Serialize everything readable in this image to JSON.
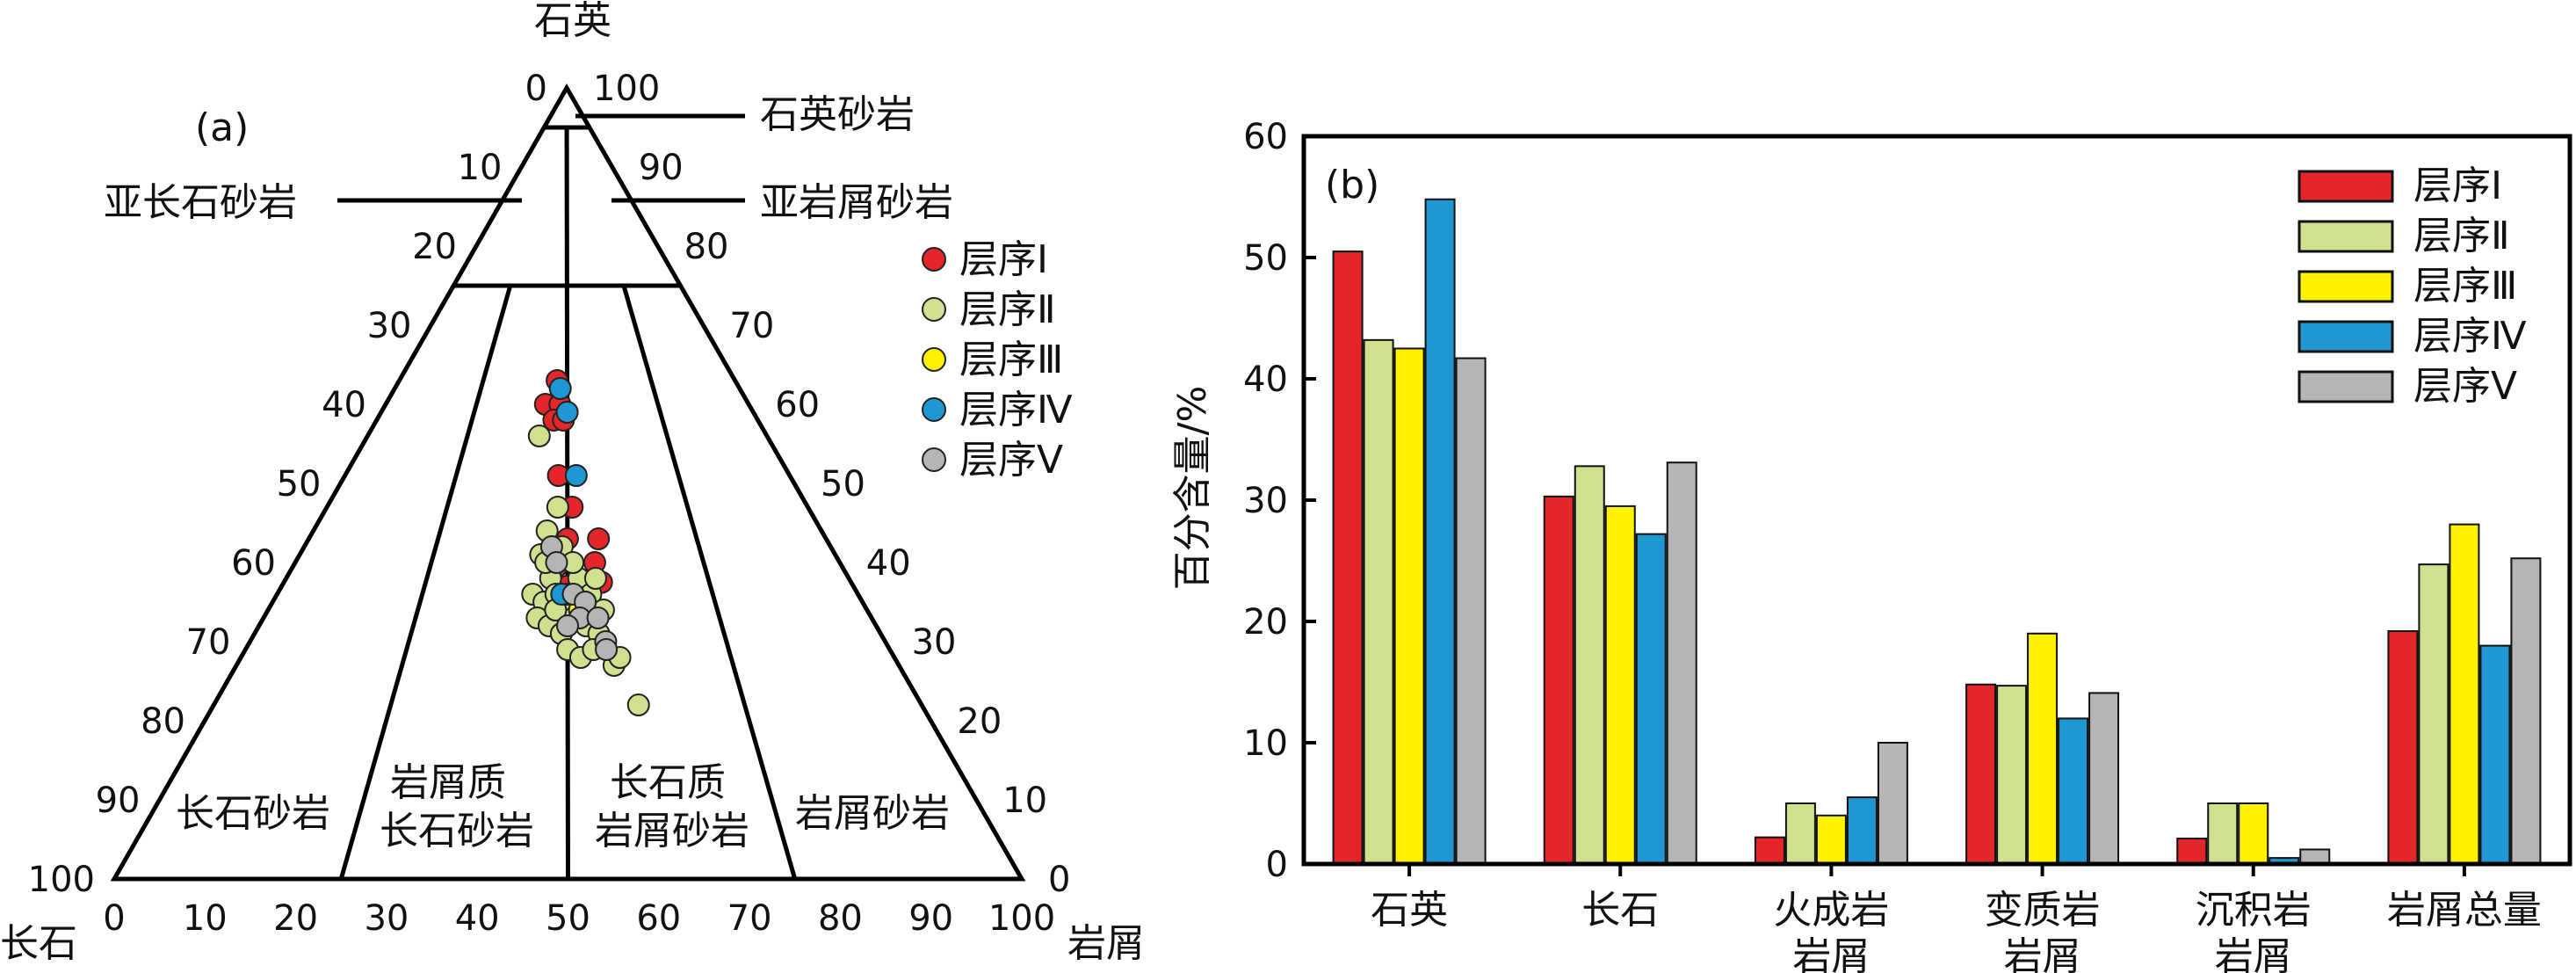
{
  "chart_data": [
    {
      "type": "scatter",
      "subtype": "ternary",
      "panel_label": "(a)",
      "axes": {
        "top": "石英",
        "left": "长石",
        "right": "岩屑"
      },
      "ticks": {
        "bottom": [
          "0",
          "10",
          "20",
          "30",
          "40",
          "50",
          "60",
          "70",
          "80",
          "90",
          "100"
        ],
        "left": [
          "0",
          "10",
          "20",
          "30",
          "40",
          "50",
          "60",
          "70",
          "80",
          "90",
          "100"
        ],
        "right": [
          "100",
          "90",
          "80",
          "70",
          "60",
          "50",
          "40",
          "30",
          "20",
          "10",
          "0"
        ]
      },
      "fields": {
        "quartz_arenite": "石英砂岩",
        "subarkose": "亚长石砂岩",
        "sublitharenite": "亚岩屑砂岩",
        "arkose": "长石砂岩",
        "lithic_arkose": [
          "岩屑质",
          "长石砂岩"
        ],
        "feldspathic_litharenite": [
          "长石质",
          "岩屑砂岩"
        ],
        "litharenite": "岩屑砂岩"
      },
      "legend_position": "right",
      "series": [
        {
          "name": "层序Ⅰ",
          "color": "#e4262a",
          "points": [
            {
              "x": 47,
              "y": 63
            },
            {
              "x": 44,
              "y": 60
            },
            {
              "x": 48,
              "y": 60
            },
            {
              "x": 46.5,
              "y": 58
            },
            {
              "x": 49,
              "y": 58
            },
            {
              "x": 48,
              "y": 51
            },
            {
              "x": 51,
              "y": 47
            },
            {
              "x": 50,
              "y": 43
            },
            {
              "x": 56,
              "y": 43
            },
            {
              "x": 55,
              "y": 40
            },
            {
              "x": 56,
              "y": 37.5
            },
            {
              "x": 48,
              "y": 39.5
            },
            {
              "x": 50,
              "y": 37
            },
            {
              "x": 52,
              "y": 34
            }
          ]
        },
        {
          "name": "层序Ⅱ",
          "color": "#cfe08e",
          "points": [
            {
              "x": 43,
              "y": 56
            },
            {
              "x": 46,
              "y": 44
            },
            {
              "x": 48,
              "y": 47
            },
            {
              "x": 45,
              "y": 41
            },
            {
              "x": 47,
              "y": 38
            },
            {
              "x": 44,
              "y": 36
            },
            {
              "x": 46,
              "y": 35
            },
            {
              "x": 48,
              "y": 36
            },
            {
              "x": 50,
              "y": 35
            },
            {
              "x": 52,
              "y": 38
            },
            {
              "x": 54,
              "y": 36
            },
            {
              "x": 55,
              "y": 38
            },
            {
              "x": 56,
              "y": 34
            },
            {
              "x": 45,
              "y": 33
            },
            {
              "x": 47,
              "y": 32
            },
            {
              "x": 49,
              "y": 31
            },
            {
              "x": 51,
              "y": 33
            },
            {
              "x": 53,
              "y": 32
            },
            {
              "x": 55,
              "y": 31
            },
            {
              "x": 50,
              "y": 29
            },
            {
              "x": 52,
              "y": 28
            },
            {
              "x": 54,
              "y": 29
            },
            {
              "x": 57,
              "y": 27
            },
            {
              "x": 48,
              "y": 34
            },
            {
              "x": 46,
              "y": 40
            },
            {
              "x": 49,
              "y": 42
            },
            {
              "x": 51,
              "y": 40
            },
            {
              "x": 53,
              "y": 35
            },
            {
              "x": 58,
              "y": 28
            },
            {
              "x": 60,
              "y": 22
            }
          ]
        },
        {
          "name": "层序Ⅲ",
          "color": "#fff200",
          "points": [
            {
              "x": 50,
              "y": 36
            },
            {
              "x": 52,
              "y": 34
            }
          ]
        },
        {
          "name": "层序Ⅳ",
          "color": "#1f97d2",
          "points": [
            {
              "x": 48,
              "y": 62
            },
            {
              "x": 50,
              "y": 59
            },
            {
              "x": 52,
              "y": 51
            },
            {
              "x": 49,
              "y": 36
            }
          ]
        },
        {
          "name": "层序Ⅴ",
          "color": "#b5b5b5",
          "points": [
            {
              "x": 47,
              "y": 42
            },
            {
              "x": 48,
              "y": 40
            },
            {
              "x": 51,
              "y": 36
            },
            {
              "x": 53,
              "y": 35
            },
            {
              "x": 52,
              "y": 33
            },
            {
              "x": 50,
              "y": 32
            },
            {
              "x": 55,
              "y": 33
            },
            {
              "x": 56,
              "y": 30
            },
            {
              "x": 56,
              "y": 29
            }
          ]
        }
      ]
    },
    {
      "type": "bar",
      "panel_label": "(b)",
      "ylabel": "百分含量/%",
      "ylim": [
        0,
        60
      ],
      "yticks": [
        "0",
        "10",
        "20",
        "30",
        "40",
        "50",
        "60"
      ],
      "categories": [
        [
          "石英"
        ],
        [
          "长石"
        ],
        [
          "火成岩",
          "岩屑"
        ],
        [
          "变质岩",
          "岩屑"
        ],
        [
          "沉积岩",
          "岩屑"
        ],
        [
          "岩屑总量"
        ]
      ],
      "legend_position": "top-right",
      "series": [
        {
          "name": "层序Ⅰ",
          "color": "#e4262a",
          "values": [
            50.5,
            30.3,
            2.2,
            14.8,
            2.1,
            19.2
          ]
        },
        {
          "name": "层序Ⅱ",
          "color": "#cfe08e",
          "values": [
            43.2,
            32.8,
            5.0,
            14.7,
            5.0,
            24.7
          ]
        },
        {
          "name": "层序Ⅲ",
          "color": "#fff200",
          "values": [
            42.5,
            29.5,
            4.0,
            19.0,
            5.0,
            28.0
          ]
        },
        {
          "name": "层序Ⅳ",
          "color": "#1f97d2",
          "values": [
            54.8,
            27.2,
            5.5,
            12.0,
            0.5,
            18.0
          ]
        },
        {
          "name": "层序Ⅴ",
          "color": "#b5b5b5",
          "values": [
            41.7,
            33.1,
            10.0,
            14.1,
            1.2,
            25.2
          ]
        }
      ]
    }
  ]
}
